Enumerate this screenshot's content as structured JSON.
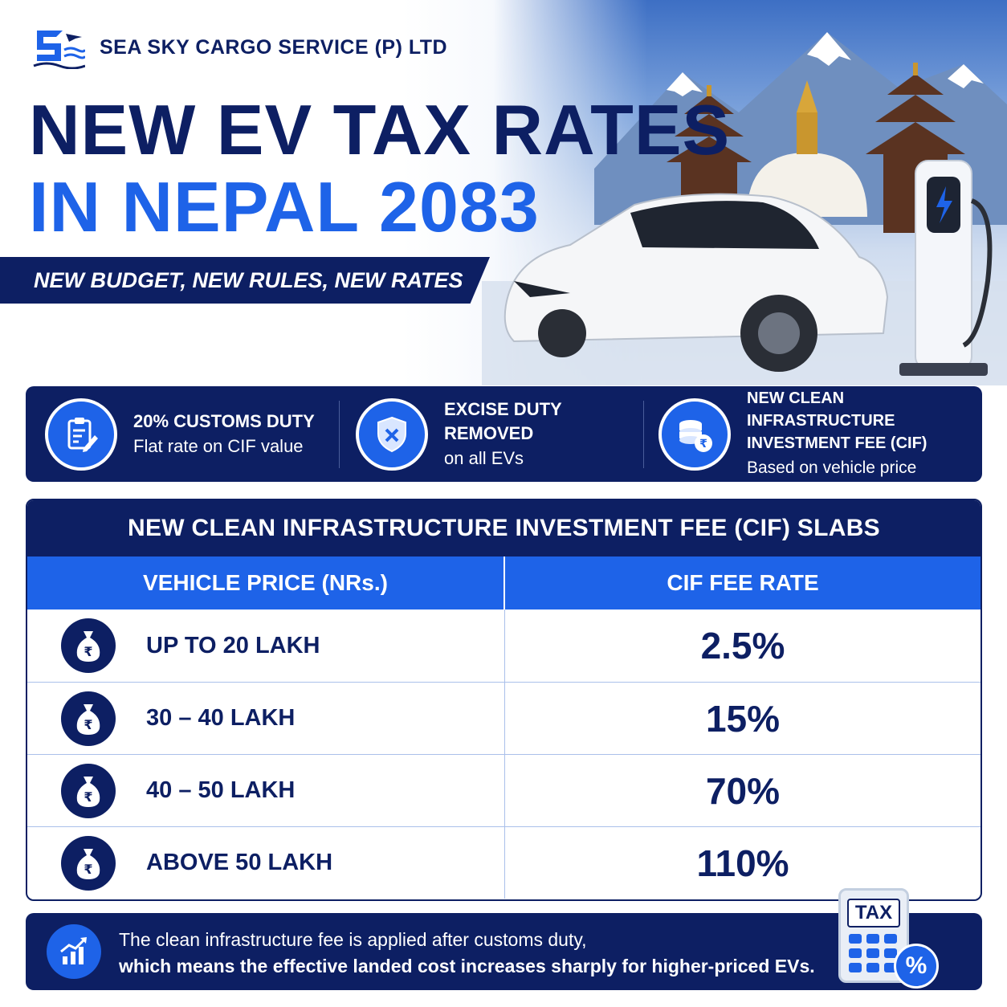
{
  "brand": {
    "name": "SEA SKY CARGO SERVICE (P) LTD",
    "logo_icon": "ship-plane-waves-logo"
  },
  "headline": {
    "line1": "NEW EV TAX RATES",
    "line2": "IN NEPAL 2083"
  },
  "tagline": "NEW BUDGET, NEW RULES, NEW RATES",
  "colors": {
    "navy": "#0d1f63",
    "blue": "#1e63e8",
    "white": "#ffffff"
  },
  "features": [
    {
      "icon": "clipboard-pen-icon",
      "title": "20% CUSTOMS DUTY",
      "title2": "",
      "subtitle": "Flat rate on CIF value"
    },
    {
      "icon": "shield-x-icon",
      "title": "EXCISE DUTY REMOVED",
      "title2": "",
      "subtitle": "on all EVs"
    },
    {
      "icon": "coin-stack-rupee-icon",
      "title": "NEW CLEAN INFRASTRUCTURE",
      "title2": "INVESTMENT FEE (CIF)",
      "subtitle": "Based on vehicle price"
    }
  ],
  "table": {
    "title": "NEW CLEAN INFRASTRUCTURE INVESTMENT FEE (CIF) SLABS",
    "col_price": "VEHICLE PRICE (NRs.)",
    "col_rate": "CIF FEE RATE",
    "rows": [
      {
        "price": "UP TO 20 LAKH",
        "rate": "2.5%"
      },
      {
        "price": "30 – 40 LAKH",
        "rate": "15%"
      },
      {
        "price": "40 – 50 LAKH",
        "rate": "70%"
      },
      {
        "price": "ABOVE 50 LAKH",
        "rate": "110%"
      }
    ]
  },
  "note": {
    "line1": "The clean infrastructure fee is applied after customs duty,",
    "line2": "which means the effective landed cost increases sharply for higher-priced EVs.",
    "icon": "rising-chart-icon"
  },
  "calculator": {
    "screen": "TAX",
    "badge": "%"
  }
}
